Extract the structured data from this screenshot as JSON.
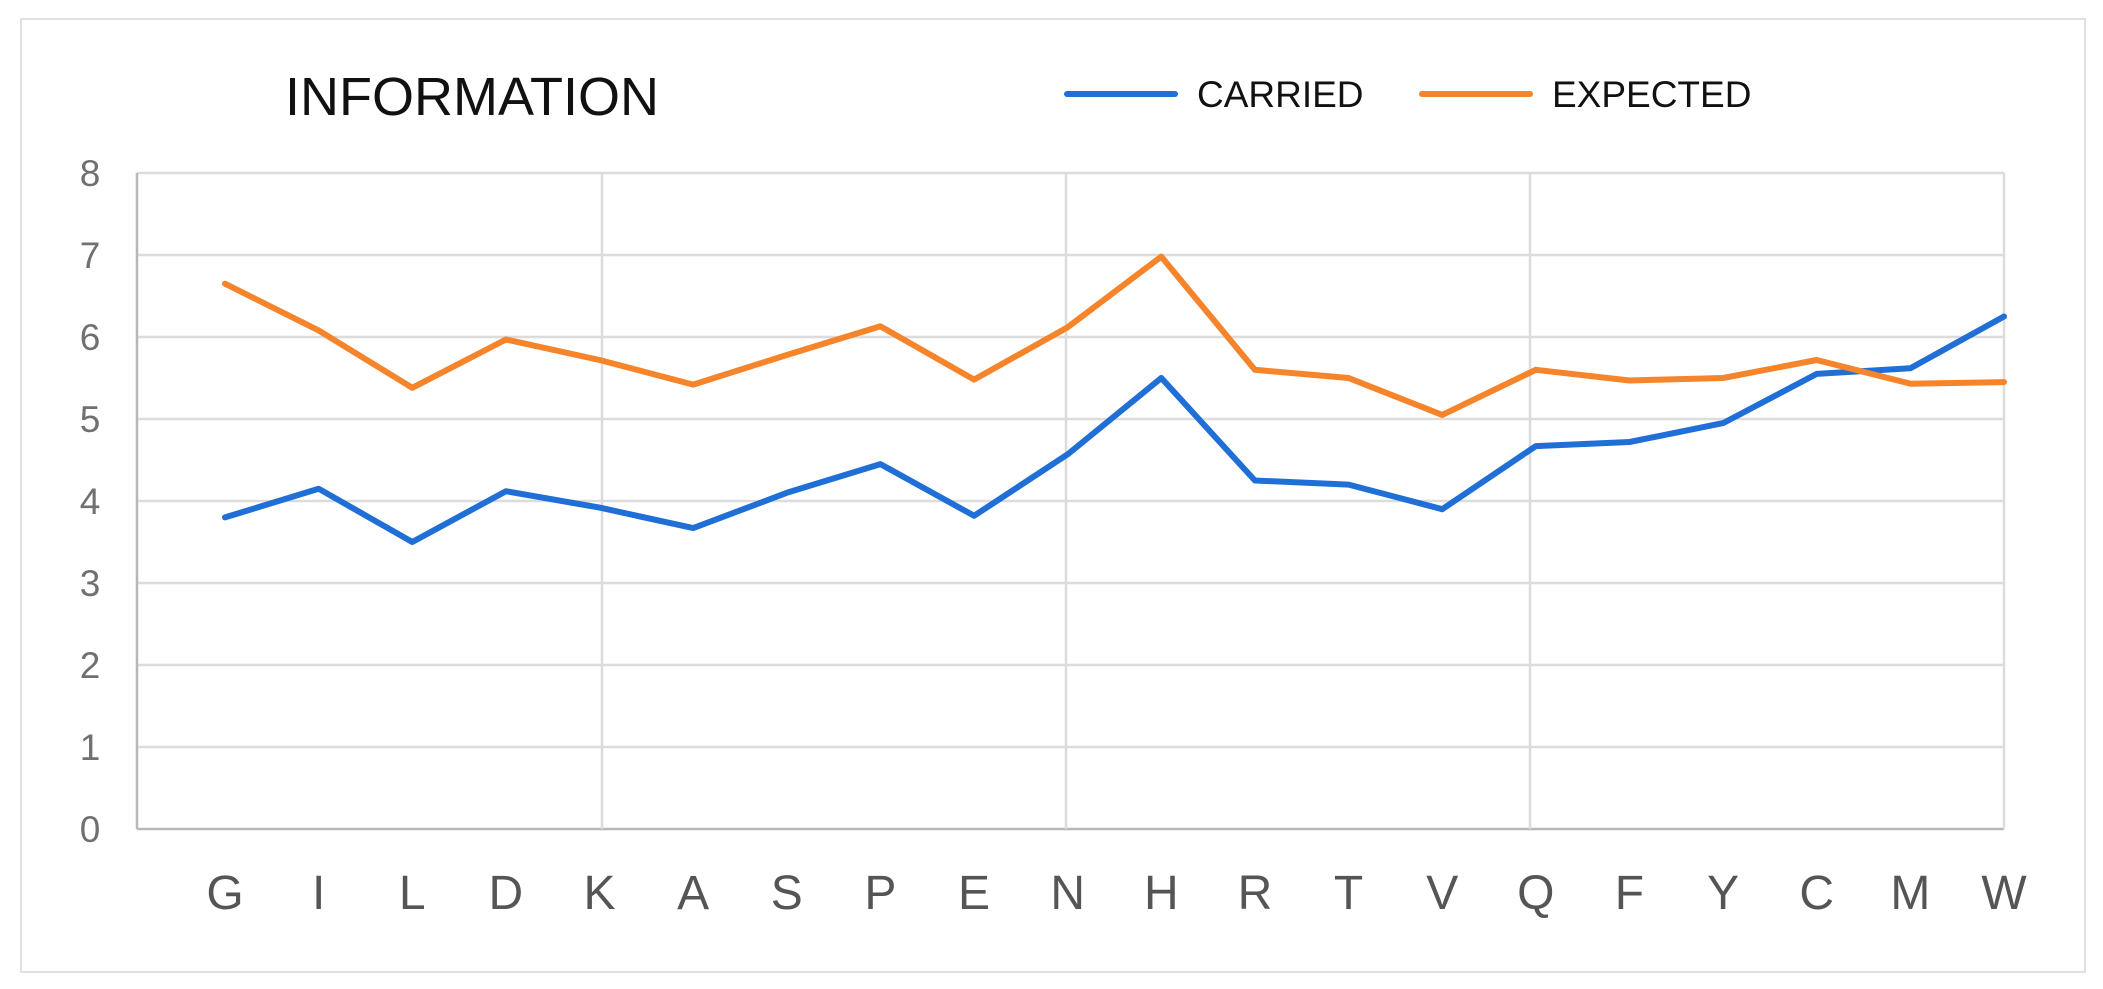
{
  "chart_data": {
    "type": "line",
    "title": "INFORMATION",
    "xlabel": "",
    "ylabel": "",
    "categories": [
      "G",
      "I",
      "L",
      "D",
      "K",
      "A",
      "S",
      "P",
      "E",
      "N",
      "H",
      "R",
      "T",
      "V",
      "Q",
      "F",
      "Y",
      "C",
      "M",
      "W"
    ],
    "series": [
      {
        "name": "CARRIED",
        "color": "#1f6fd6",
        "values": [
          3.8,
          4.15,
          3.5,
          4.12,
          3.92,
          3.67,
          4.1,
          4.45,
          3.82,
          4.57,
          5.5,
          4.25,
          4.2,
          3.9,
          4.67,
          4.72,
          4.95,
          5.55,
          5.62,
          6.25
        ]
      },
      {
        "name": "EXPECTED",
        "color": "#f5842a",
        "values": [
          6.65,
          6.08,
          5.38,
          5.97,
          5.72,
          5.42,
          5.78,
          6.13,
          5.48,
          6.12,
          6.98,
          5.6,
          5.5,
          5.05,
          5.6,
          5.47,
          5.5,
          5.72,
          5.43,
          5.45
        ]
      }
    ],
    "ylim": [
      0,
      8
    ],
    "yticks": [
      "0",
      "1",
      "2",
      "3",
      "4",
      "5",
      "6",
      "7",
      "8"
    ],
    "grid": true,
    "legend": "top-right"
  }
}
